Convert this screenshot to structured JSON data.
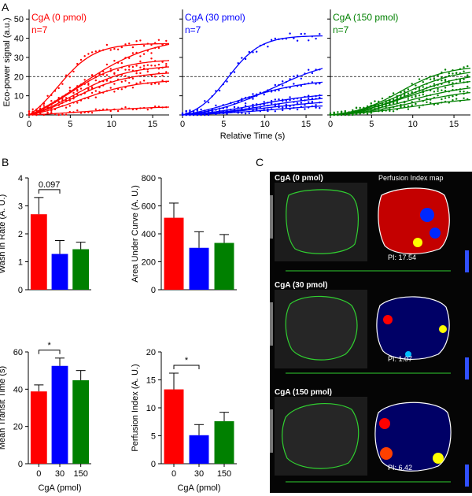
{
  "panel_labels": {
    "a": "A",
    "b": "B",
    "c": "C"
  },
  "chart_data": [
    {
      "type": "scatter",
      "title": "CgA (0 pmol)",
      "subtitle": "n=7",
      "color": "#ff0000",
      "xlabel": "",
      "ylabel": "Eco-power signal (a.u.)",
      "xlim": [
        0,
        17
      ],
      "ylim": [
        0,
        55
      ],
      "xticks": [
        0,
        5,
        10,
        15
      ],
      "yticks": [
        0,
        10,
        20,
        30,
        40,
        50
      ],
      "reference_line": 20,
      "series": [
        {
          "name": "s1",
          "plateau": 52,
          "t50": 6,
          "k": 0.22
        },
        {
          "name": "s2",
          "plateau": 45,
          "t50": 3.5,
          "k": 0.45
        },
        {
          "name": "s3",
          "plateau": 35,
          "t50": 5,
          "k": 0.32
        },
        {
          "name": "s4",
          "plateau": 31,
          "t50": 5.5,
          "k": 0.3
        },
        {
          "name": "s5",
          "plateau": 27,
          "t50": 5.5,
          "k": 0.3
        },
        {
          "name": "s6",
          "plateau": 22,
          "t50": 6,
          "k": 0.28
        },
        {
          "name": "s7",
          "plateau": 6,
          "t50": 7,
          "k": 0.2
        }
      ]
    },
    {
      "type": "scatter",
      "title": "CgA (30 pmol)",
      "subtitle": "n=7",
      "color": "#0000ff",
      "xlabel": "Relative Time (s)",
      "ylabel": "",
      "xlim": [
        0,
        17
      ],
      "ylim": [
        0,
        55
      ],
      "xticks": [
        0,
        5,
        10,
        15
      ],
      "yticks": [
        0,
        10,
        20,
        30,
        40,
        50
      ],
      "reference_line": 20,
      "series": [
        {
          "name": "s1",
          "plateau": 44,
          "t50": 5.5,
          "k": 0.5
        },
        {
          "name": "s2",
          "plateau": 32,
          "t50": 11,
          "k": 0.25
        },
        {
          "name": "s3",
          "plateau": 22,
          "t50": 7,
          "k": 0.25
        },
        {
          "name": "s4",
          "plateau": 13,
          "t50": 9,
          "k": 0.25
        },
        {
          "name": "s5",
          "plateau": 11,
          "t50": 10,
          "k": 0.25
        },
        {
          "name": "s6",
          "plateau": 9,
          "t50": 10,
          "k": 0.22
        },
        {
          "name": "s7",
          "plateau": 7,
          "t50": 11,
          "k": 0.2
        }
      ]
    },
    {
      "type": "scatter",
      "title": "CgA (150 pmol)",
      "subtitle": "n=7",
      "color": "#008000",
      "xlabel": "",
      "ylabel": "",
      "xlim": [
        0,
        17
      ],
      "ylim": [
        0,
        55
      ],
      "xticks": [
        0,
        5,
        10,
        15
      ],
      "yticks": [
        0,
        10,
        20,
        30,
        40,
        50
      ],
      "reference_line": 20,
      "series": [
        {
          "name": "s1",
          "plateau": 27,
          "t50": 8.5,
          "k": 0.35
        },
        {
          "name": "s2",
          "plateau": 26,
          "t50": 9,
          "k": 0.3
        },
        {
          "name": "s3",
          "plateau": 24,
          "t50": 9.5,
          "k": 0.28
        },
        {
          "name": "s4",
          "plateau": 21,
          "t50": 9,
          "k": 0.28
        },
        {
          "name": "s5",
          "plateau": 18,
          "t50": 9.5,
          "k": 0.25
        },
        {
          "name": "s6",
          "plateau": 15,
          "t50": 10,
          "k": 0.25
        },
        {
          "name": "s7",
          "plateau": 11,
          "t50": 10,
          "k": 0.22
        }
      ]
    },
    {
      "type": "bar",
      "categories": [
        "0",
        "30",
        "150"
      ],
      "colors": [
        "#ff0000",
        "#0000ff",
        "#008000"
      ],
      "values": [
        2.7,
        1.28,
        1.45
      ],
      "errors": [
        0.6,
        0.48,
        0.25
      ],
      "ylabel": "Wash in Rate (A. U.)",
      "xlabel": "",
      "ylim": [
        0,
        4
      ],
      "yticks": [
        0,
        1,
        2,
        3,
        4
      ],
      "show_xticklabels": false,
      "significance": {
        "from": 0,
        "to": 1,
        "label": "0.097"
      }
    },
    {
      "type": "bar",
      "categories": [
        "0",
        "30",
        "150"
      ],
      "colors": [
        "#ff0000",
        "#0000ff",
        "#008000"
      ],
      "values": [
        515,
        300,
        335
      ],
      "errors": [
        105,
        115,
        60
      ],
      "ylabel": "Area Under Curve (A. U.)",
      "xlabel": "",
      "ylim": [
        0,
        800
      ],
      "yticks": [
        0,
        200,
        400,
        600,
        800
      ],
      "show_xticklabels": false,
      "significance": null
    },
    {
      "type": "bar",
      "categories": [
        "0",
        "30",
        "150"
      ],
      "colors": [
        "#ff0000",
        "#0000ff",
        "#008000"
      ],
      "values": [
        38.8,
        52.5,
        44.8
      ],
      "errors": [
        3.5,
        4.2,
        5.2
      ],
      "ylabel": "Mean Transit Time (s)",
      "xlabel": "CgA (pmol)",
      "ylim": [
        0,
        60
      ],
      "yticks": [
        0,
        20,
        40,
        60
      ],
      "show_xticklabels": true,
      "significance": {
        "from": 0,
        "to": 1,
        "label": "*"
      }
    },
    {
      "type": "bar",
      "categories": [
        "0",
        "30",
        "150"
      ],
      "colors": [
        "#ff0000",
        "#0000ff",
        "#008000"
      ],
      "values": [
        13.3,
        5.1,
        7.6
      ],
      "errors": [
        2.9,
        1.9,
        1.6
      ],
      "ylabel": "Perfusion Index (A. U.)",
      "xlabel": "CgA (pmol)",
      "ylim": [
        0,
        20
      ],
      "yticks": [
        0,
        5,
        10,
        15,
        20
      ],
      "show_xticklabels": true,
      "significance": {
        "from": 0,
        "to": 1,
        "label": "*"
      }
    }
  ],
  "ultrasound": [
    {
      "title": "CgA (0 pmol)",
      "map_label": "Perfusion Index map",
      "pi": "PI: 17.54"
    },
    {
      "title": "CgA (30 pmol)",
      "map_label": "Perfusion Index map",
      "pi": "PI: 1.07"
    },
    {
      "title": "CgA (150 pmol)",
      "map_label": "Perfusion Index map",
      "pi": "PI: 6.42"
    }
  ]
}
